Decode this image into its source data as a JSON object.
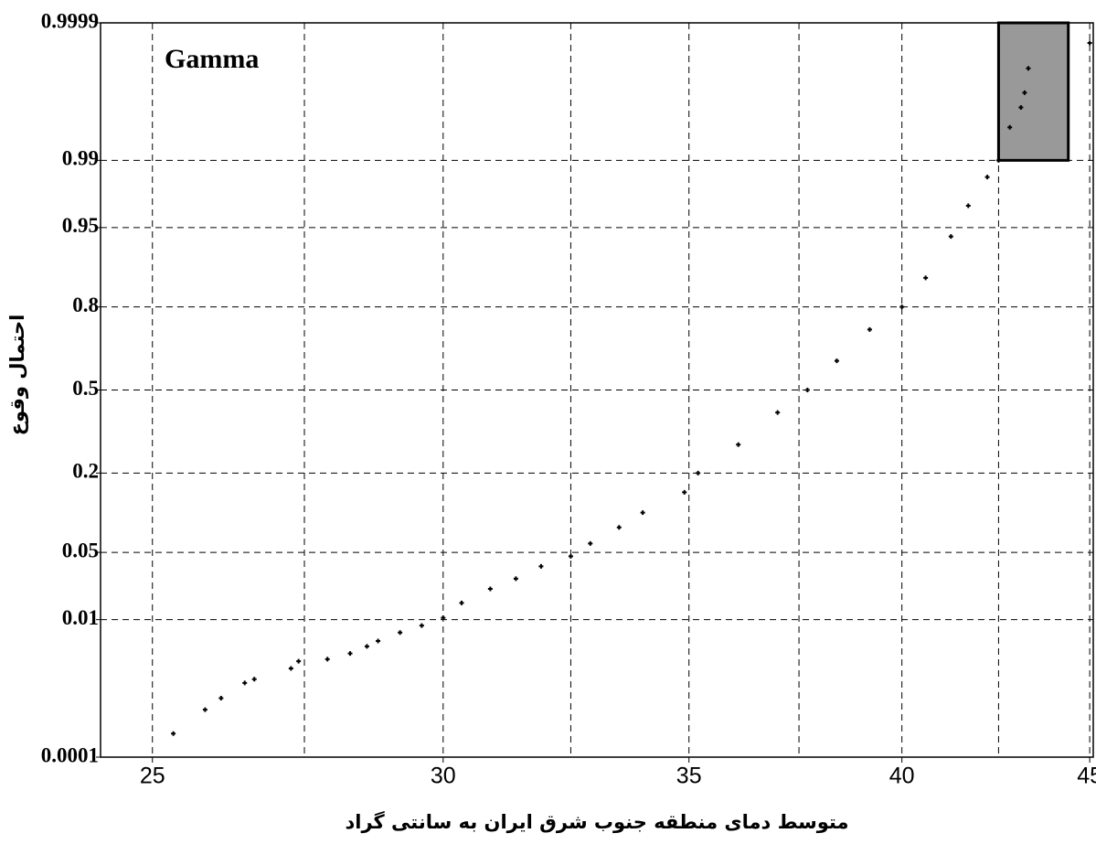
{
  "chart_data": {
    "type": "scatter",
    "annotation": "Gamma",
    "x_label": "متوسط دمای منطقه جنوب شرق ایران به سانتی گراد",
    "y_label": "احتمال وقوع",
    "x_scale": "log",
    "y_scale": "normal-probability",
    "xlim": [
      24.2,
      45.1
    ],
    "xticks": [
      25,
      30,
      35,
      40,
      45
    ],
    "xminor": [
      27.5,
      32.5,
      37.5,
      42.5
    ],
    "ylim": [
      0.0001,
      0.9999
    ],
    "yticks": [
      0.0001,
      0.01,
      0.05,
      0.2,
      0.5,
      0.8,
      0.95,
      0.99,
      0.9999
    ],
    "grid": true,
    "highlight_box": {
      "x": [
        42.5,
        44.4
      ],
      "y": [
        0.99,
        0.9999
      ],
      "color": "#999999"
    },
    "series": [
      {
        "color": "#000000",
        "x": [
          25.33,
          25.84,
          26.1,
          26.49,
          26.65,
          27.27,
          27.4,
          27.9,
          28.3,
          28.6,
          28.8,
          29.2,
          29.6,
          30,
          30.35,
          30.9,
          31.4,
          31.9,
          32.5,
          32.9,
          33.5,
          34.0,
          34.9,
          35.2,
          36.1,
          37.0,
          37.7,
          38.4,
          39.2,
          40,
          40.6,
          41.25,
          41.7,
          42.2,
          42.5,
          42.8,
          43.1,
          43.2,
          43.3,
          45
        ],
        "values": [
          0.00025,
          0.0006,
          0.0009,
          0.0015,
          0.0017,
          0.0024,
          0.003,
          0.0032,
          0.0038,
          0.0047,
          0.0055,
          0.007,
          0.0085,
          0.0105,
          0.0155,
          0.022,
          0.028,
          0.037,
          0.046,
          0.06,
          0.082,
          0.107,
          0.15,
          0.2,
          0.29,
          0.41,
          0.5,
          0.616,
          0.73,
          0.8,
          0.872,
          0.94,
          0.969,
          0.9845,
          0.99,
          0.9961,
          0.9979,
          0.9987,
          0.99944,
          0.99978
        ]
      }
    ]
  }
}
